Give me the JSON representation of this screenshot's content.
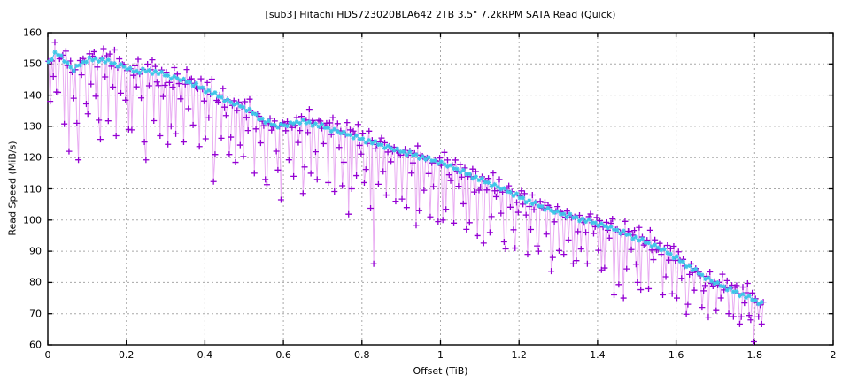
{
  "chart_data": {
    "type": "line",
    "title": "[sub3] Hitachi HDS723020BLA642 2TB 3.5\" 7.2kRPM SATA Read (Quick)",
    "xlabel": "Offset (TiB)",
    "ylabel": "Read Speed (MiB/s)",
    "xlim": [
      0,
      2
    ],
    "ylim": [
      60,
      160
    ],
    "xtick_values": [
      0,
      0.2,
      0.4,
      0.6,
      0.8,
      1,
      1.2,
      1.4,
      1.6,
      1.8,
      2
    ],
    "xtick_labels": [
      "0",
      "0.2",
      "0.4",
      "0.6",
      "0.8",
      "1",
      "1.2",
      "1.4",
      "1.6",
      "1.8",
      "2"
    ],
    "ytick_values": [
      60,
      70,
      80,
      90,
      100,
      110,
      120,
      130,
      140,
      150,
      160
    ],
    "ytick_labels": [
      "60",
      "70",
      "80",
      "90",
      "100",
      "110",
      "120",
      "130",
      "140",
      "150",
      "160"
    ],
    "grid": "dashed",
    "legend": "none",
    "colors": {
      "sample_marker": "#9400D3",
      "sample_line": "#DD82EBA6",
      "average_line": "#3FC6E8",
      "grid_line": "#a8a8a8",
      "border": "#000000",
      "background": "#ffffff"
    },
    "series_names": [
      "read-speed-samples",
      "moving-average"
    ],
    "trend": [
      [
        0.0,
        150
      ],
      [
        0.02,
        153.5
      ],
      [
        0.035,
        152.5
      ],
      [
        0.05,
        150
      ],
      [
        0.065,
        148
      ],
      [
        0.08,
        149.5
      ],
      [
        0.1,
        151.3
      ],
      [
        0.13,
        151.5
      ],
      [
        0.16,
        150.5
      ],
      [
        0.19,
        149.3
      ],
      [
        0.22,
        147.5
      ],
      [
        0.25,
        147.8
      ],
      [
        0.28,
        147.3
      ],
      [
        0.31,
        146
      ],
      [
        0.34,
        145
      ],
      [
        0.37,
        143.5
      ],
      [
        0.4,
        141.8
      ],
      [
        0.43,
        140
      ],
      [
        0.46,
        138
      ],
      [
        0.49,
        136.5
      ],
      [
        0.52,
        134.5
      ],
      [
        0.55,
        131.8
      ],
      [
        0.58,
        130.2
      ],
      [
        0.61,
        130.4
      ],
      [
        0.64,
        131.5
      ],
      [
        0.67,
        131
      ],
      [
        0.7,
        130
      ],
      [
        0.73,
        128.7
      ],
      [
        0.76,
        127.5
      ],
      [
        0.79,
        126.2
      ],
      [
        0.82,
        125.2
      ],
      [
        0.85,
        124
      ],
      [
        0.88,
        122.7
      ],
      [
        0.91,
        121.5
      ],
      [
        0.94,
        120.6
      ],
      [
        0.97,
        119.5
      ],
      [
        1.0,
        118.4
      ],
      [
        1.03,
        116.8
      ],
      [
        1.06,
        115.2
      ],
      [
        1.09,
        113.6
      ],
      [
        1.12,
        112
      ],
      [
        1.15,
        110.4
      ],
      [
        1.18,
        108.6
      ],
      [
        1.21,
        106.8
      ],
      [
        1.24,
        105.2
      ],
      [
        1.27,
        103.6
      ],
      [
        1.3,
        102.2
      ],
      [
        1.33,
        101.2
      ],
      [
        1.36,
        100.2
      ],
      [
        1.39,
        99.2
      ],
      [
        1.42,
        98
      ],
      [
        1.45,
        96.6
      ],
      [
        1.48,
        95.2
      ],
      [
        1.51,
        93.6
      ],
      [
        1.54,
        92
      ],
      [
        1.57,
        90.2
      ],
      [
        1.6,
        87.8
      ],
      [
        1.63,
        85.4
      ],
      [
        1.66,
        82.8
      ],
      [
        1.69,
        80.4
      ],
      [
        1.72,
        78.6
      ],
      [
        1.75,
        77
      ],
      [
        1.78,
        75.4
      ],
      [
        1.8,
        74.3
      ],
      [
        1.817,
        73.3
      ]
    ],
    "deep_dips": [
      [
        0.004,
        138
      ],
      [
        0.022,
        141
      ],
      [
        0.055,
        122
      ],
      [
        0.075,
        131
      ],
      [
        0.1,
        134
      ],
      [
        0.13,
        132
      ],
      [
        0.175,
        127
      ],
      [
        0.205,
        129
      ],
      [
        0.245,
        125
      ],
      [
        0.285,
        127
      ],
      [
        0.315,
        130
      ],
      [
        0.345,
        125
      ],
      [
        0.4,
        126
      ],
      [
        0.425,
        121
      ],
      [
        0.46,
        121
      ],
      [
        0.49,
        124
      ],
      [
        0.525,
        115
      ],
      [
        0.555,
        113
      ],
      [
        0.585,
        116
      ],
      [
        0.625,
        114
      ],
      [
        0.655,
        117
      ],
      [
        0.685,
        113
      ],
      [
        0.715,
        112
      ],
      [
        0.75,
        111
      ],
      [
        0.775,
        110
      ],
      [
        0.805,
        112
      ],
      [
        0.83,
        86
      ],
      [
        0.86,
        108
      ],
      [
        0.885,
        106
      ],
      [
        0.915,
        104
      ],
      [
        0.945,
        103
      ],
      [
        0.975,
        101
      ],
      [
        1.005,
        100
      ],
      [
        1.035,
        99
      ],
      [
        1.065,
        97
      ],
      [
        1.095,
        95
      ],
      [
        1.125,
        96
      ],
      [
        1.16,
        93
      ],
      [
        1.19,
        91
      ],
      [
        1.22,
        89
      ],
      [
        1.25,
        90
      ],
      [
        1.285,
        88
      ],
      [
        1.315,
        89
      ],
      [
        1.345,
        87
      ],
      [
        1.375,
        86
      ],
      [
        1.41,
        84
      ],
      [
        1.44,
        76
      ],
      [
        1.465,
        75
      ],
      [
        1.5,
        80
      ],
      [
        1.53,
        78
      ],
      [
        1.565,
        76
      ],
      [
        1.6,
        75
      ],
      [
        1.63,
        73
      ],
      [
        1.665,
        72
      ],
      [
        1.7,
        71
      ],
      [
        1.735,
        70
      ],
      [
        1.765,
        69
      ],
      [
        1.79,
        68
      ],
      [
        1.81,
        69
      ]
    ],
    "samples": {
      "x_start": 0.002,
      "x_step": 0.004,
      "count": 456,
      "jitter_tile": [
        0.5,
        2.2,
        -0.8,
        1.5,
        3.8,
        -0.2,
        1.8,
        -1.2,
        2.6,
        0.8,
        1.2,
        4.4,
        -0.5,
        1.0,
        2.0,
        -1.0,
        0.6,
        1.6,
        3.2,
        -0.7,
        1.4,
        0.4,
        2.3,
        -0.3,
        1.9,
        0.9,
        3.9,
        -0.9,
        1.1,
        2.5,
        0.1
      ],
      "dip_tile": [
        0,
        2,
        0,
        8,
        0,
        1,
        14,
        0,
        3,
        0,
        22,
        1,
        0,
        6,
        0,
        0,
        10,
        2,
        0,
        30,
        0,
        4,
        1,
        0,
        16,
        0,
        2,
        7,
        0,
        0,
        12,
        3,
        0,
        25,
        1,
        0,
        5,
        0,
        18,
        0,
        2,
        9,
        0
      ],
      "avg_jitter_tile": [
        0.3,
        -0.4,
        0.6,
        -0.2,
        0.1,
        -0.6,
        0.4,
        0,
        -0.3,
        0.5,
        -0.1,
        0.2,
        -0.5,
        0.7,
        -0.2,
        0.3,
        -0.7
      ]
    }
  }
}
